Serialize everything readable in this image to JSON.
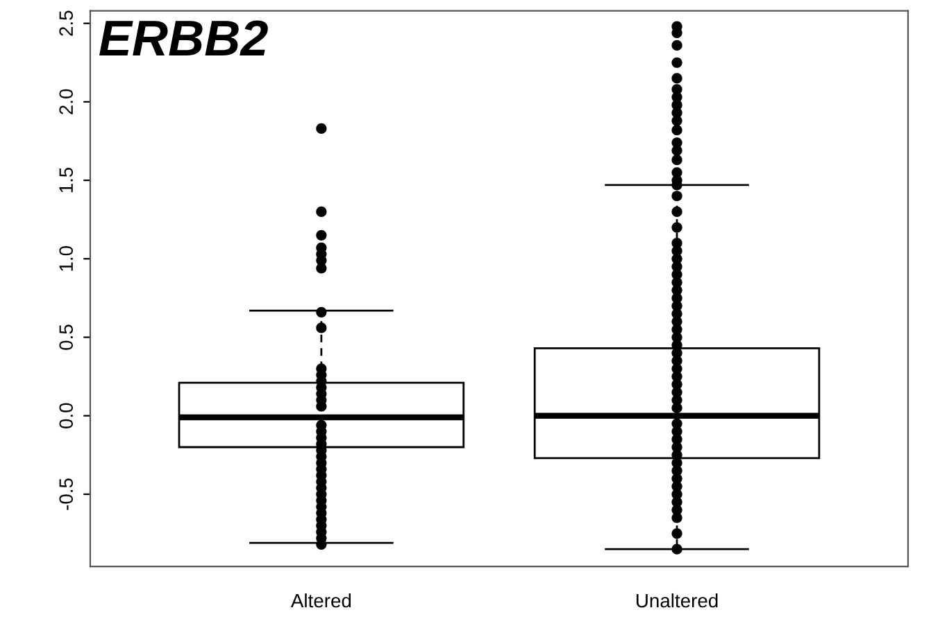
{
  "chart_data": {
    "type": "box",
    "title": "ERBB2",
    "categories": [
      "Altered",
      "Unaltered"
    ],
    "boxes": [
      {
        "low": -0.81,
        "q1": -0.2,
        "median": -0.01,
        "q3": 0.21,
        "high": 0.67
      },
      {
        "low": -0.85,
        "q1": -0.27,
        "median": 0.0,
        "q3": 0.43,
        "high": 1.47
      }
    ],
    "ylim": [
      -0.96,
      2.58
    ],
    "yticks": [
      {
        "value": -0.5,
        "label": "-0.5"
      },
      {
        "value": 0.0,
        "label": "0.0"
      },
      {
        "value": 0.5,
        "label": "0.5"
      },
      {
        "value": 1.0,
        "label": "1.0"
      },
      {
        "value": 1.5,
        "label": "1.5"
      },
      {
        "value": 2.0,
        "label": "2.0"
      },
      {
        "value": 2.5,
        "label": "2.5"
      }
    ],
    "grid": false,
    "legend": false,
    "marker": "circle",
    "series": [
      {
        "type": "scatter",
        "color": "#000000",
        "x": [
          "Altered",
          "Altered",
          "Altered",
          "Altered",
          "Altered",
          "Altered",
          "Altered",
          "Altered",
          "Altered",
          "Altered",
          "Altered",
          "Altered",
          "Altered",
          "Altered",
          "Altered",
          "Altered",
          "Altered",
          "Altered",
          "Altered",
          "Altered",
          "Altered",
          "Altered",
          "Altered",
          "Altered",
          "Altered",
          "Altered",
          "Altered",
          "Altered",
          "Altered",
          "Altered",
          "Altered",
          "Altered",
          "Altered",
          "Altered",
          "Altered",
          "Altered"
        ],
        "values": [
          1.83,
          1.3,
          1.15,
          1.07,
          1.03,
          0.99,
          0.94,
          0.66,
          0.56,
          0.3,
          0.26,
          0.22,
          0.18,
          0.14,
          0.1,
          0.06,
          -0.06,
          -0.1,
          -0.14,
          -0.18,
          -0.22,
          -0.26,
          -0.3,
          -0.34,
          -0.38,
          -0.42,
          -0.46,
          -0.5,
          -0.54,
          -0.58,
          -0.62,
          -0.66,
          -0.7,
          -0.74,
          -0.78,
          -0.82
        ]
      },
      {
        "type": "scatter",
        "color": "#000000",
        "x": [
          "Unaltered",
          "Unaltered",
          "Unaltered",
          "Unaltered",
          "Unaltered",
          "Unaltered",
          "Unaltered",
          "Unaltered",
          "Unaltered",
          "Unaltered",
          "Unaltered",
          "Unaltered",
          "Unaltered",
          "Unaltered",
          "Unaltered",
          "Unaltered",
          "Unaltered",
          "Unaltered",
          "Unaltered",
          "Unaltered",
          "Unaltered",
          "Unaltered",
          "Unaltered",
          "Unaltered",
          "Unaltered",
          "Unaltered",
          "Unaltered",
          "Unaltered",
          "Unaltered",
          "Unaltered",
          "Unaltered",
          "Unaltered",
          "Unaltered",
          "Unaltered",
          "Unaltered",
          "Unaltered",
          "Unaltered",
          "Unaltered",
          "Unaltered",
          "Unaltered",
          "Unaltered",
          "Unaltered",
          "Unaltered",
          "Unaltered",
          "Unaltered",
          "Unaltered",
          "Unaltered",
          "Unaltered",
          "Unaltered",
          "Unaltered",
          "Unaltered",
          "Unaltered",
          "Unaltered",
          "Unaltered",
          "Unaltered",
          "Unaltered",
          "Unaltered"
        ],
        "values": [
          2.48,
          2.44,
          2.36,
          2.25,
          2.15,
          2.08,
          2.03,
          1.98,
          1.93,
          1.88,
          1.82,
          1.74,
          1.69,
          1.63,
          1.55,
          1.5,
          1.47,
          1.4,
          1.3,
          1.2,
          1.1,
          1.05,
          1.0,
          0.95,
          0.9,
          0.85,
          0.8,
          0.75,
          0.7,
          0.65,
          0.6,
          0.55,
          0.5,
          0.45,
          0.4,
          0.35,
          0.3,
          0.25,
          0.2,
          0.15,
          0.1,
          0.05,
          -0.05,
          -0.1,
          -0.15,
          -0.2,
          -0.25,
          -0.3,
          -0.35,
          -0.4,
          -0.45,
          -0.5,
          -0.55,
          -0.6,
          -0.65,
          -0.75,
          -0.85
        ]
      }
    ]
  }
}
